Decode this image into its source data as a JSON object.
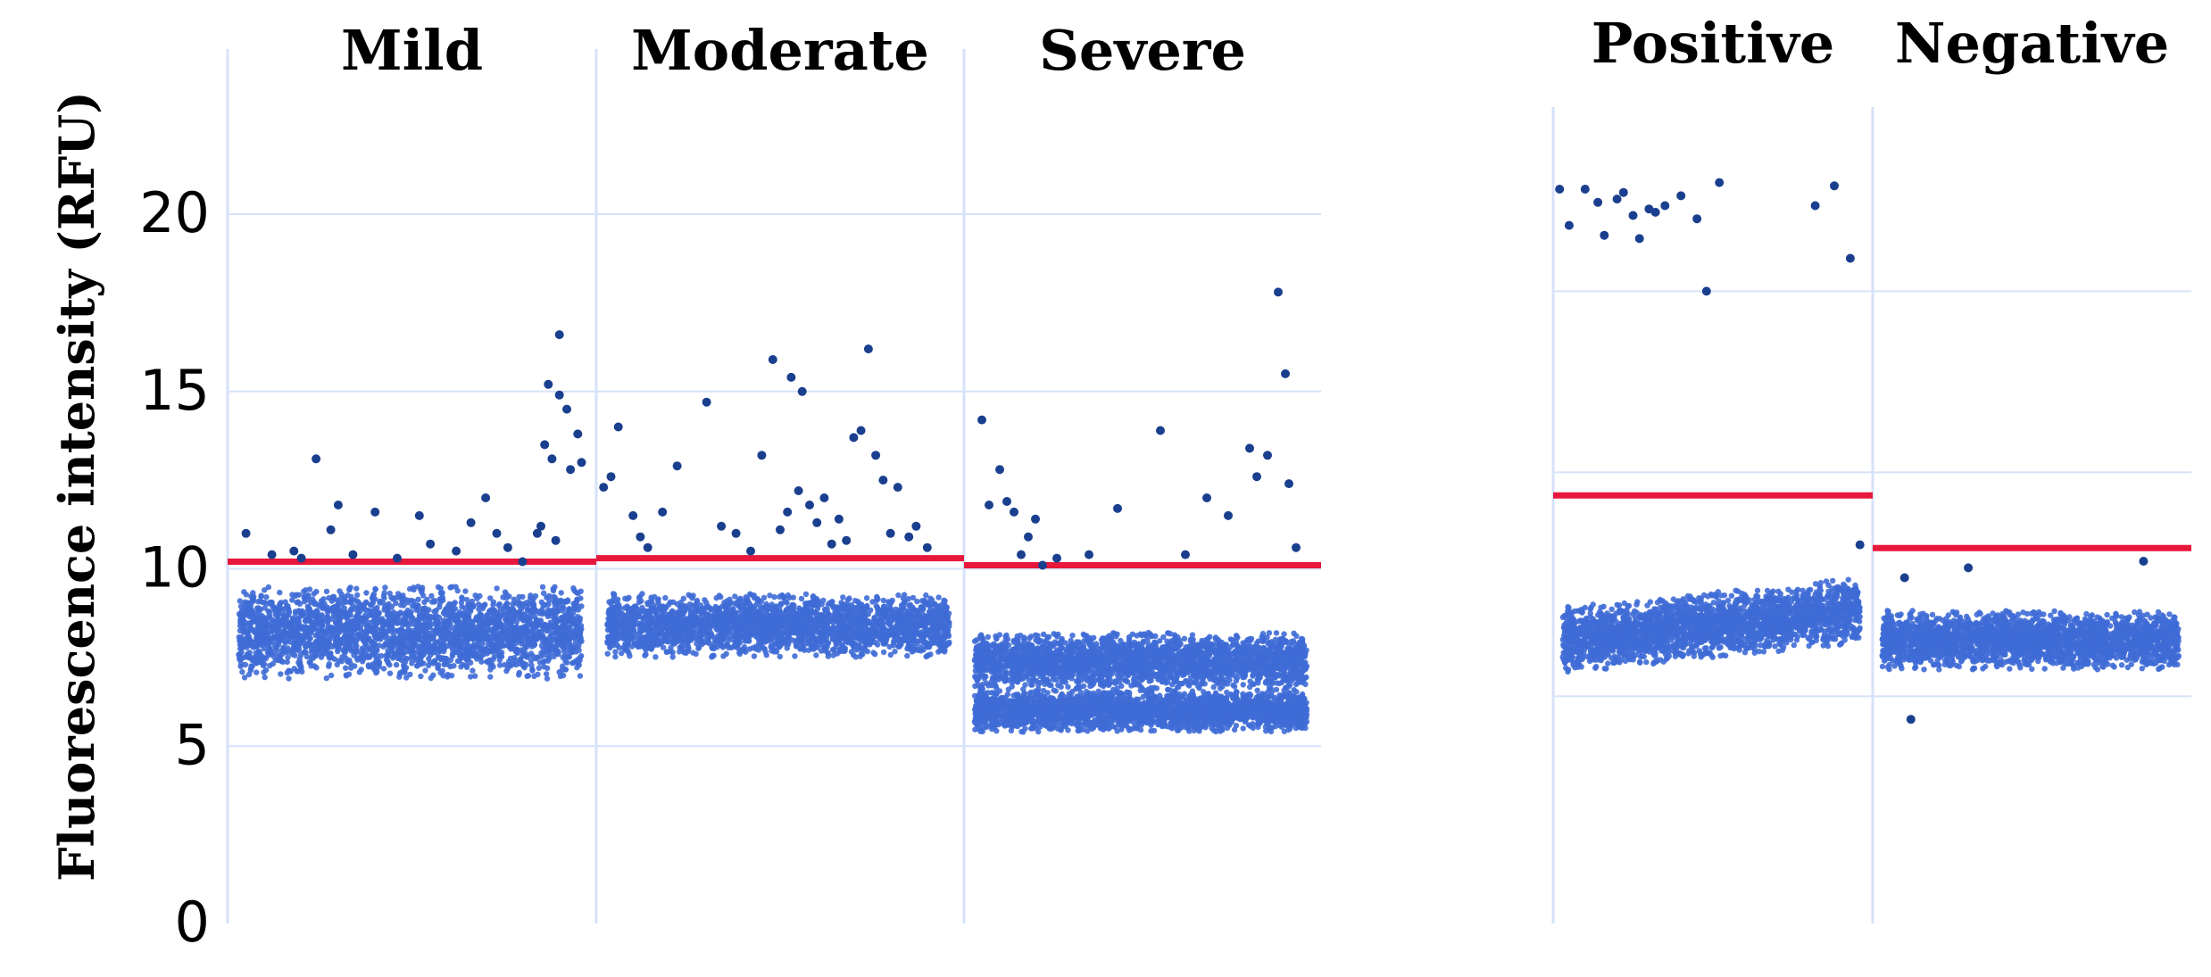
{
  "chart_data": [
    {
      "type": "scatter",
      "ylabel": "Fluorescence intensity (RFU)",
      "ylim": [
        0,
        24
      ],
      "yticks": [
        0,
        5,
        10,
        15,
        20
      ],
      "colors": {
        "point": "#3f6bd6",
        "outlier": "#1a3f8f",
        "threshold": "#e8173c",
        "grid": "#d6e2f8"
      },
      "groups": [
        {
          "name": "Mild",
          "threshold": 10.2,
          "bands": [
            {
              "center": 8.2,
              "spread": 1.3
            }
          ],
          "outliers": [
            [
              0.05,
              11.0
            ],
            [
              0.12,
              10.4
            ],
            [
              0.2,
              10.3
            ],
            [
              0.24,
              13.1
            ],
            [
              0.28,
              11.1
            ],
            [
              0.3,
              11.8
            ],
            [
              0.4,
              11.6
            ],
            [
              0.52,
              11.5
            ],
            [
              0.55,
              10.7
            ],
            [
              0.62,
              10.5
            ],
            [
              0.66,
              11.3
            ],
            [
              0.7,
              12.0
            ],
            [
              0.73,
              11.0
            ],
            [
              0.76,
              10.6
            ],
            [
              0.8,
              10.2
            ],
            [
              0.84,
              11.0
            ],
            [
              0.86,
              13.5
            ],
            [
              0.87,
              15.2
            ],
            [
              0.88,
              13.1
            ],
            [
              0.9,
              14.9
            ],
            [
              0.9,
              16.6
            ],
            [
              0.92,
              14.5
            ],
            [
              0.93,
              12.8
            ],
            [
              0.95,
              13.8
            ],
            [
              0.96,
              13.0
            ],
            [
              0.89,
              10.8
            ],
            [
              0.85,
              11.2
            ],
            [
              0.18,
              10.5
            ],
            [
              0.34,
              10.4
            ],
            [
              0.46,
              10.3
            ]
          ]
        },
        {
          "name": "Moderate",
          "threshold": 10.3,
          "bands": [
            {
              "center": 8.4,
              "spread": 0.9
            }
          ],
          "outliers": [
            [
              0.02,
              12.3
            ],
            [
              0.04,
              12.6
            ],
            [
              0.06,
              14.0
            ],
            [
              0.1,
              11.5
            ],
            [
              0.12,
              10.9
            ],
            [
              0.14,
              10.6
            ],
            [
              0.18,
              11.6
            ],
            [
              0.22,
              12.9
            ],
            [
              0.3,
              14.7
            ],
            [
              0.34,
              11.2
            ],
            [
              0.38,
              11.0
            ],
            [
              0.42,
              10.5
            ],
            [
              0.45,
              13.2
            ],
            [
              0.48,
              15.9
            ],
            [
              0.5,
              11.1
            ],
            [
              0.52,
              11.6
            ],
            [
              0.53,
              15.4
            ],
            [
              0.55,
              12.2
            ],
            [
              0.56,
              15.0
            ],
            [
              0.58,
              11.8
            ],
            [
              0.6,
              11.3
            ],
            [
              0.62,
              12.0
            ],
            [
              0.66,
              11.4
            ],
            [
              0.7,
              13.7
            ],
            [
              0.72,
              13.9
            ],
            [
              0.74,
              16.2
            ],
            [
              0.76,
              13.2
            ],
            [
              0.78,
              12.5
            ],
            [
              0.8,
              11.0
            ],
            [
              0.82,
              12.3
            ],
            [
              0.85,
              10.9
            ],
            [
              0.87,
              11.2
            ],
            [
              0.9,
              10.6
            ],
            [
              0.68,
              10.8
            ],
            [
              0.64,
              10.7
            ]
          ]
        },
        {
          "name": "Severe",
          "threshold": 10.1,
          "bands": [
            {
              "center": 7.4,
              "spread": 0.8
            },
            {
              "center": 6.0,
              "spread": 0.6
            }
          ],
          "outliers": [
            [
              0.05,
              14.2
            ],
            [
              0.07,
              11.8
            ],
            [
              0.1,
              12.8
            ],
            [
              0.12,
              11.9
            ],
            [
              0.14,
              11.6
            ],
            [
              0.16,
              10.4
            ],
            [
              0.18,
              10.9
            ],
            [
              0.2,
              11.4
            ],
            [
              0.22,
              10.1
            ],
            [
              0.26,
              10.3
            ],
            [
              0.35,
              10.4
            ],
            [
              0.43,
              11.7
            ],
            [
              0.55,
              13.9
            ],
            [
              0.62,
              10.4
            ],
            [
              0.68,
              12.0
            ],
            [
              0.74,
              11.5
            ],
            [
              0.8,
              13.4
            ],
            [
              0.82,
              12.6
            ],
            [
              0.85,
              13.2
            ],
            [
              0.88,
              17.8
            ],
            [
              0.9,
              15.5
            ],
            [
              0.93,
              10.6
            ],
            [
              0.91,
              12.4
            ]
          ]
        }
      ]
    },
    {
      "type": "scatter",
      "ylim": [
        0,
        24
      ],
      "colors": {
        "point": "#3f6bd6",
        "outlier": "#1a3f8f",
        "threshold": "#e8173c",
        "grid": "#d6e2f8"
      },
      "groups": [
        {
          "name": "Positive",
          "threshold": 13.0,
          "bands": [
            {
              "center": 8.6,
              "spread": 1.0,
              "slope": 0.9
            }
          ],
          "outliers": [
            [
              0.02,
              22.3
            ],
            [
              0.05,
              21.2
            ],
            [
              0.14,
              21.9
            ],
            [
              0.16,
              20.9
            ],
            [
              0.22,
              22.2
            ],
            [
              0.25,
              21.5
            ],
            [
              0.27,
              20.8
            ],
            [
              0.3,
              21.7
            ],
            [
              0.32,
              21.6
            ],
            [
              0.35,
              21.8
            ],
            [
              0.4,
              22.1
            ],
            [
              0.45,
              21.4
            ],
            [
              0.48,
              19.2
            ],
            [
              0.52,
              22.5
            ],
            [
              0.82,
              21.8
            ],
            [
              0.88,
              22.4
            ],
            [
              0.93,
              20.2
            ],
            [
              0.2,
              22.0
            ],
            [
              0.1,
              22.3
            ],
            [
              0.96,
              11.5
            ]
          ]
        },
        {
          "name": "Negative",
          "threshold": 11.4,
          "bands": [
            {
              "center": 8.6,
              "spread": 0.9
            }
          ],
          "outliers": [
            [
              0.1,
              10.5
            ],
            [
              0.3,
              10.8
            ],
            [
              0.85,
              11.0
            ],
            [
              0.12,
              6.2
            ]
          ]
        }
      ]
    }
  ]
}
